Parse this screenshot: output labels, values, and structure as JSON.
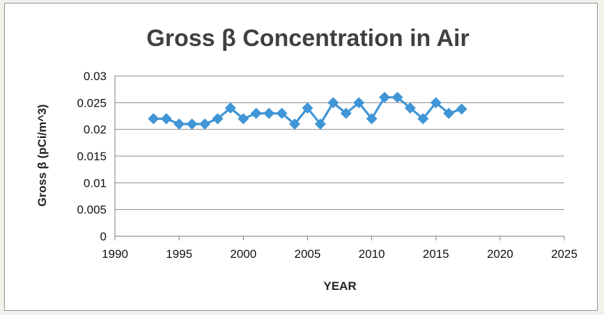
{
  "chart_data": {
    "type": "scatter",
    "title": "Gross β Concentration in Air",
    "xlabel": "YEAR",
    "ylabel": "Gross β (pCi/m^3)",
    "xlim": [
      1990,
      2025
    ],
    "ylim": [
      0,
      0.03
    ],
    "xticks": [
      "1990",
      "1995",
      "2000",
      "2005",
      "2010",
      "2015",
      "2020",
      "2025"
    ],
    "yticks": [
      "0",
      "0.005",
      "0.01",
      "0.015",
      "0.02",
      "0.025",
      "0.03"
    ],
    "grid": "horizontal",
    "legend": "none",
    "marker": "diamond",
    "line": "straight lines with markers",
    "color": "#3f95d6",
    "series": [
      {
        "x": [
          1993,
          1994,
          1995,
          1996,
          1997,
          1998,
          1999,
          2000,
          2001,
          2002,
          2003,
          2004,
          2005,
          2006,
          2007,
          2008,
          2009,
          2010,
          2011,
          2012,
          2013,
          2014,
          2015,
          2016,
          2017
        ],
        "values": [
          0.022,
          0.022,
          0.021,
          0.021,
          0.021,
          0.022,
          0.024,
          0.022,
          0.023,
          0.023,
          0.023,
          0.021,
          0.024,
          0.021,
          0.025,
          0.023,
          0.025,
          0.022,
          0.026,
          0.026,
          0.024,
          0.022,
          0.025,
          0.023,
          0.0238
        ]
      }
    ]
  }
}
